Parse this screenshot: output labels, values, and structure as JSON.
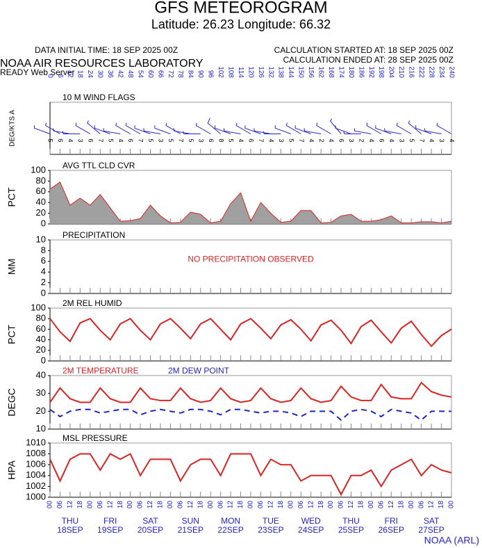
{
  "header": {
    "title": "GFS METEOROGRAM",
    "subtitle": "Latitude: 26.23 Longitude:  66.32",
    "init_time": "DATA INITIAL TIME: 18 SEP 2025 00Z",
    "calc_start": "CALCULATION STARTED AT: 18 SEP 2025 00Z",
    "calc_end": "CALCULATION ENDED AT: 28 SEP 2025 00Z",
    "org": "NOAA AIR RESOURCES LABORATORY",
    "server": "READY Web Server",
    "credit": "NOAA (ARL)"
  },
  "time_axis": {
    "x": [
      0,
      6,
      12,
      18,
      24,
      30,
      36,
      42,
      48,
      54,
      60,
      66,
      72,
      78,
      84,
      90,
      96,
      102,
      108,
      114,
      120,
      126,
      132,
      138,
      144,
      150,
      156,
      162,
      168,
      174,
      180,
      186,
      192,
      198,
      204,
      210,
      216,
      222,
      228,
      234,
      240
    ],
    "xlim": [
      0,
      240
    ],
    "hour_labels": [
      "00",
      "06",
      "12",
      "18",
      "00",
      "06",
      "12",
      "18",
      "00",
      "06",
      "12",
      "18",
      "00",
      "06",
      "12",
      "18",
      "00",
      "06",
      "12",
      "18",
      "00",
      "06",
      "12",
      "18",
      "00",
      "06",
      "12",
      "18",
      "00",
      "06",
      "12",
      "18",
      "00",
      "06",
      "12",
      "18",
      "00",
      "06",
      "12",
      "18",
      "00"
    ],
    "days": [
      {
        "day": "THU",
        "date": "18SEP",
        "hour": 12
      },
      {
        "day": "FRI",
        "date": "19SEP",
        "hour": 36
      },
      {
        "day": "SAT",
        "date": "20SEP",
        "hour": 60
      },
      {
        "day": "SUN",
        "date": "21SEP",
        "hour": 84
      },
      {
        "day": "MON",
        "date": "22SEP",
        "hour": 108
      },
      {
        "day": "TUE",
        "date": "23SEP",
        "hour": 132
      },
      {
        "day": "WED",
        "date": "24SEP",
        "hour": 156
      },
      {
        "day": "THU",
        "date": "25SEP",
        "hour": 180
      },
      {
        "day": "FRI",
        "date": "26SEP",
        "hour": 204
      },
      {
        "day": "SAT",
        "date": "27SEP",
        "hour": 228
      }
    ]
  },
  "chart_data": [
    {
      "type": "wind_flags",
      "title": "10 M  WIND FLAGS",
      "ylabel": "DEG/KTS  A",
      "color": "#2222cc",
      "direction": [
        290,
        300,
        280,
        270,
        300,
        310,
        290,
        280,
        300,
        300,
        290,
        280,
        290,
        300,
        280,
        270,
        300,
        310,
        290,
        280,
        300,
        290,
        280,
        270,
        290,
        300,
        290,
        280,
        300,
        320,
        290,
        270,
        280,
        300,
        290,
        280,
        300,
        310,
        290,
        280,
        300
      ],
      "speed": [
        5,
        6,
        4,
        3,
        6,
        7,
        5,
        4,
        6,
        7,
        5,
        3,
        5,
        7,
        5,
        3,
        6,
        8,
        5,
        4,
        6,
        7,
        4,
        3,
        5,
        7,
        4,
        2,
        4,
        6,
        3,
        2,
        4,
        6,
        4,
        3,
        5,
        7,
        4,
        3,
        4
      ]
    },
    {
      "type": "area",
      "title": "AVG TTL CLD CVR",
      "ylabel": "PCT",
      "ylim": [
        0,
        100
      ],
      "yticks": [
        0,
        20,
        40,
        60,
        80,
        100
      ],
      "color": "#a0a0a0",
      "line_color": "#dd2222",
      "values": [
        65,
        78,
        35,
        48,
        35,
        55,
        30,
        5,
        6,
        10,
        35,
        15,
        2,
        3,
        22,
        18,
        2,
        5,
        38,
        58,
        5,
        40,
        20,
        3,
        5,
        25,
        25,
        2,
        3,
        15,
        18,
        5,
        5,
        8,
        15,
        2,
        2,
        4,
        4,
        2,
        5
      ]
    },
    {
      "type": "note",
      "title": "PRECIPITATION",
      "ylabel": "MM",
      "ylim": [
        0,
        10
      ],
      "yticks": [
        0,
        2,
        4,
        6,
        8,
        10
      ],
      "annotation": "NO PRECIPITATION OBSERVED",
      "color": "#dd2222"
    },
    {
      "type": "line",
      "title": "2M REL HUMID",
      "ylabel": "PCT",
      "ylim": [
        0,
        100
      ],
      "yticks": [
        0,
        20,
        40,
        60,
        80,
        100
      ],
      "series": [
        {
          "color": "#dd2222",
          "values": [
            80,
            55,
            37,
            72,
            80,
            58,
            40,
            70,
            80,
            58,
            40,
            70,
            80,
            62,
            42,
            70,
            80,
            60,
            40,
            70,
            80,
            62,
            42,
            68,
            78,
            60,
            38,
            68,
            77,
            58,
            33,
            65,
            77,
            55,
            34,
            62,
            75,
            50,
            28,
            48,
            60
          ]
        }
      ]
    },
    {
      "type": "line",
      "ylabel": "DEGC",
      "ylim": [
        10,
        40
      ],
      "yticks": [
        10,
        20,
        30,
        40
      ],
      "series": [
        {
          "name": "2M TEMPERATURE",
          "color": "#dd2222",
          "values": [
            25,
            33,
            27,
            25,
            25,
            33,
            27,
            25,
            25,
            33,
            27,
            26,
            26,
            33,
            27,
            25,
            26,
            33,
            27,
            25,
            26,
            33,
            27,
            25,
            26,
            33,
            27,
            25,
            26,
            34,
            28,
            26,
            26,
            35,
            28,
            27,
            27,
            36,
            31,
            29,
            28
          ]
        },
        {
          "name": "2M   DEW POINT",
          "color": "#2222cc",
          "dashed": true,
          "values": [
            21,
            17,
            20,
            21,
            21,
            19,
            20,
            21,
            21,
            18,
            20,
            21,
            20,
            19,
            21,
            21,
            20,
            18,
            21,
            21,
            20,
            19,
            20,
            20,
            19,
            17,
            20,
            20,
            20,
            15,
            20,
            21,
            20,
            17,
            21,
            20,
            19,
            15,
            20,
            20,
            20
          ]
        }
      ]
    },
    {
      "type": "line",
      "title": "MSL PRESSURE",
      "ylabel": "HPA",
      "ylim": [
        1000,
        1010
      ],
      "yticks": [
        1000,
        1002,
        1004,
        1006,
        1008,
        1010
      ],
      "series": [
        {
          "color": "#dd2222",
          "values": [
            1007,
            1003,
            1007,
            1008,
            1008,
            1005,
            1008,
            1007,
            1008,
            1004,
            1007,
            1007,
            1007,
            1003,
            1006,
            1007,
            1007,
            1004,
            1008,
            1008,
            1008,
            1004,
            1007,
            1006,
            1006,
            1003,
            1004,
            1004,
            1004,
            1000.5,
            1004,
            1004,
            1005,
            1002,
            1005,
            1006,
            1007,
            1004,
            1006,
            1005,
            1004.5
          ]
        }
      ]
    }
  ]
}
